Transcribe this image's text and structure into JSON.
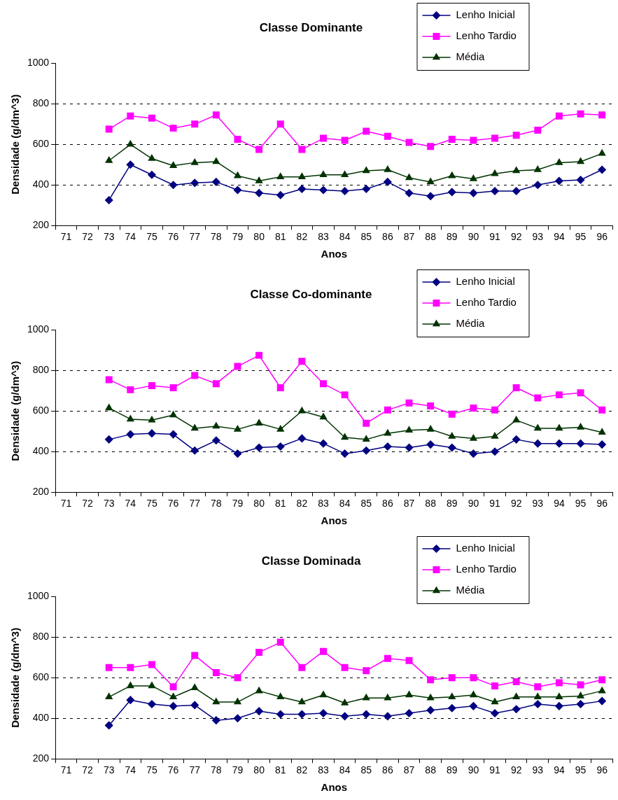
{
  "chart_data": [
    {
      "type": "line",
      "title": "Classe Dominante",
      "xlabel": "Anos",
      "ylabel": "Densidade (g/dm^3)",
      "categories": [
        "71",
        "72",
        "73",
        "74",
        "75",
        "76",
        "77",
        "78",
        "79",
        "80",
        "81",
        "82",
        "83",
        "84",
        "85",
        "86",
        "87",
        "88",
        "89",
        "90",
        "91",
        "92",
        "93",
        "94",
        "95",
        "96"
      ],
      "ylim": [
        200,
        1000
      ],
      "yticks": [
        200,
        400,
        600,
        800,
        1000
      ],
      "grid": "y",
      "legend": "top right",
      "series": [
        {
          "name": "Lenho Inicial",
          "color": "#000080",
          "marker": "diamond",
          "values": [
            null,
            null,
            325,
            500,
            450,
            400,
            410,
            415,
            375,
            360,
            350,
            380,
            375,
            370,
            380,
            415,
            360,
            345,
            365,
            360,
            370,
            370,
            400,
            420,
            425,
            475
          ]
        },
        {
          "name": "Lenho Tardio",
          "color": "#ff00ff",
          "marker": "square",
          "values": [
            null,
            null,
            675,
            740,
            730,
            680,
            700,
            745,
            625,
            575,
            700,
            575,
            630,
            620,
            665,
            640,
            610,
            590,
            625,
            620,
            630,
            645,
            670,
            740,
            750,
            745
          ]
        },
        {
          "name": "Média",
          "color": "#003300",
          "marker": "triangle",
          "values": [
            null,
            null,
            520,
            600,
            530,
            495,
            510,
            515,
            445,
            420,
            440,
            440,
            450,
            450,
            470,
            475,
            435,
            415,
            445,
            430,
            455,
            470,
            475,
            510,
            515,
            555
          ]
        }
      ]
    },
    {
      "type": "line",
      "title": "Classe Co-dominante",
      "xlabel": "Anos",
      "ylabel": "Densidade (g/dm^3)",
      "categories": [
        "71",
        "72",
        "73",
        "74",
        "75",
        "76",
        "77",
        "78",
        "79",
        "80",
        "81",
        "82",
        "83",
        "84",
        "85",
        "86",
        "87",
        "88",
        "89",
        "90",
        "91",
        "92",
        "93",
        "94",
        "95",
        "96"
      ],
      "ylim": [
        200,
        1000
      ],
      "yticks": [
        200,
        400,
        600,
        800,
        1000
      ],
      "grid": "y",
      "legend": "top right",
      "series": [
        {
          "name": "Lenho Inicial",
          "color": "#000080",
          "marker": "diamond",
          "values": [
            null,
            null,
            460,
            485,
            490,
            485,
            405,
            455,
            390,
            420,
            425,
            465,
            440,
            390,
            405,
            425,
            420,
            435,
            420,
            390,
            400,
            460,
            440,
            440,
            440,
            435
          ]
        },
        {
          "name": "Lenho Tardio",
          "color": "#ff00ff",
          "marker": "square",
          "values": [
            null,
            null,
            755,
            705,
            725,
            715,
            775,
            735,
            820,
            875,
            715,
            845,
            735,
            680,
            540,
            605,
            640,
            625,
            585,
            615,
            605,
            715,
            665,
            680,
            690,
            605
          ]
        },
        {
          "name": "Média",
          "color": "#003300",
          "marker": "triangle",
          "values": [
            null,
            null,
            615,
            560,
            555,
            580,
            515,
            525,
            510,
            540,
            510,
            600,
            570,
            470,
            460,
            490,
            505,
            510,
            475,
            465,
            475,
            555,
            515,
            515,
            520,
            495
          ]
        }
      ]
    },
    {
      "type": "line",
      "title": "Classe Dominada",
      "xlabel": "Anos",
      "ylabel": "Densidade (g/dm^3)",
      "categories": [
        "71",
        "72",
        "73",
        "74",
        "75",
        "76",
        "77",
        "78",
        "79",
        "80",
        "81",
        "82",
        "83",
        "84",
        "85",
        "86",
        "87",
        "88",
        "89",
        "90",
        "91",
        "92",
        "93",
        "94",
        "95",
        "96"
      ],
      "ylim": [
        200,
        1000
      ],
      "yticks": [
        200,
        400,
        600,
        800,
        1000
      ],
      "grid": "y",
      "legend": "top right",
      "series": [
        {
          "name": "Lenho Inicial",
          "color": "#000080",
          "marker": "diamond",
          "values": [
            null,
            null,
            365,
            490,
            470,
            460,
            465,
            390,
            400,
            435,
            420,
            420,
            425,
            410,
            420,
            410,
            425,
            440,
            450,
            460,
            425,
            445,
            470,
            460,
            470,
            485
          ]
        },
        {
          "name": "Lenho Tardio",
          "color": "#ff00ff",
          "marker": "square",
          "values": [
            null,
            null,
            650,
            650,
            665,
            555,
            710,
            625,
            600,
            725,
            775,
            650,
            730,
            650,
            635,
            695,
            685,
            590,
            600,
            600,
            560,
            580,
            555,
            575,
            565,
            590
          ]
        },
        {
          "name": "Média",
          "color": "#003300",
          "marker": "triangle",
          "values": [
            null,
            null,
            505,
            560,
            560,
            505,
            550,
            480,
            480,
            535,
            505,
            480,
            515,
            475,
            500,
            500,
            515,
            500,
            505,
            515,
            480,
            505,
            505,
            505,
            510,
            535
          ]
        }
      ]
    }
  ]
}
